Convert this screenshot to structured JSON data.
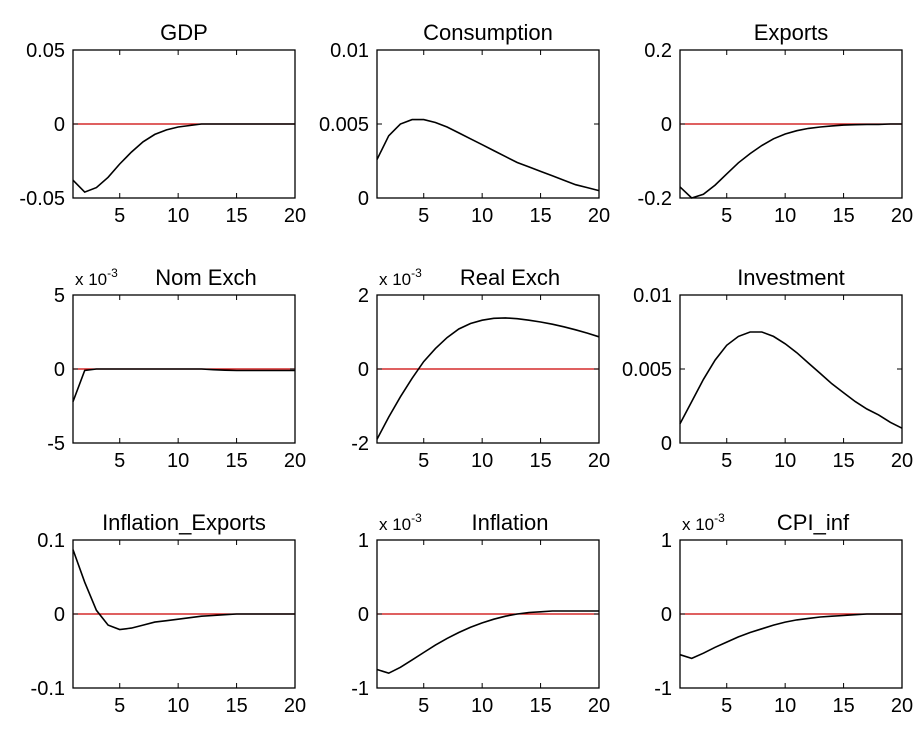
{
  "chart_data": [
    {
      "type": "line",
      "title": "GDP",
      "multiplier": "",
      "xlim": [
        1,
        20
      ],
      "ylim": [
        -0.05,
        0.05
      ],
      "xticks": [
        "5",
        "10",
        "15",
        "20"
      ],
      "yticks": [
        "0.05",
        "0",
        "-0.05"
      ],
      "zero_line_color": "#cc0000",
      "x": [
        1,
        2,
        3,
        4,
        5,
        6,
        7,
        8,
        9,
        10,
        11,
        12,
        13,
        14,
        15,
        16,
        17,
        18,
        19,
        20
      ],
      "y": [
        -0.038,
        -0.046,
        -0.043,
        -0.036,
        -0.027,
        -0.019,
        -0.012,
        -0.007,
        -0.004,
        -0.002,
        -0.001,
        0.0,
        0.0,
        0.0,
        0.0,
        0.0,
        0.0,
        0.0,
        0.0,
        0.0
      ]
    },
    {
      "type": "line",
      "title": "Consumption",
      "multiplier": "",
      "xlim": [
        1,
        20
      ],
      "ylim": [
        0,
        0.01
      ],
      "xticks": [
        "5",
        "10",
        "15",
        "20"
      ],
      "yticks": [
        "0.01",
        "0.005",
        "0"
      ],
      "zero_line_color": "#cc0000",
      "x": [
        1,
        2,
        3,
        4,
        5,
        6,
        7,
        8,
        9,
        10,
        11,
        12,
        13,
        14,
        15,
        16,
        17,
        18,
        19,
        20
      ],
      "y": [
        0.0026,
        0.0042,
        0.005,
        0.0053,
        0.0053,
        0.0051,
        0.0048,
        0.0044,
        0.004,
        0.0036,
        0.0032,
        0.0028,
        0.0024,
        0.0021,
        0.0018,
        0.0015,
        0.0012,
        0.0009,
        0.0007,
        0.0005
      ]
    },
    {
      "type": "line",
      "title": "Exports",
      "multiplier": "",
      "xlim": [
        1,
        20
      ],
      "ylim": [
        -0.2,
        0.2
      ],
      "xticks": [
        "5",
        "10",
        "15",
        "20"
      ],
      "yticks": [
        "0.2",
        "0",
        "-0.2"
      ],
      "zero_line_color": "#cc0000",
      "x": [
        1,
        2,
        3,
        4,
        5,
        6,
        7,
        8,
        9,
        10,
        11,
        12,
        13,
        14,
        15,
        16,
        17,
        18,
        19,
        20
      ],
      "y": [
        -0.17,
        -0.2,
        -0.19,
        -0.165,
        -0.135,
        -0.105,
        -0.08,
        -0.058,
        -0.04,
        -0.027,
        -0.018,
        -0.012,
        -0.008,
        -0.005,
        -0.003,
        -0.002,
        -0.001,
        -0.001,
        0.0,
        0.0
      ]
    },
    {
      "type": "line",
      "title": "Nom Exch",
      "multiplier": "x 10",
      "multiplier_exp": "-3",
      "xlim": [
        1,
        20
      ],
      "ylim": [
        -5,
        5
      ],
      "xticks": [
        "5",
        "10",
        "15",
        "20"
      ],
      "yticks": [
        "5",
        "0",
        "-5"
      ],
      "zero_line_color": "#cc0000",
      "x": [
        1,
        2,
        3,
        4,
        5,
        6,
        7,
        8,
        9,
        10,
        11,
        12,
        13,
        14,
        15,
        16,
        17,
        18,
        19,
        20
      ],
      "y": [
        -2.2,
        -0.1,
        0.0,
        0.0,
        0.0,
        0.0,
        0.0,
        0.0,
        0.0,
        0.0,
        0.0,
        0.0,
        -0.05,
        -0.08,
        -0.1,
        -0.1,
        -0.1,
        -0.1,
        -0.1,
        -0.1
      ]
    },
    {
      "type": "line",
      "title": "Real Exch",
      "multiplier": "x 10",
      "multiplier_exp": "-3",
      "xlim": [
        1,
        20
      ],
      "ylim": [
        -2,
        2
      ],
      "xticks": [
        "5",
        "10",
        "15",
        "20"
      ],
      "yticks": [
        "2",
        "0",
        "-2"
      ],
      "zero_line_color": "#cc0000",
      "x": [
        1,
        2,
        3,
        4,
        5,
        6,
        7,
        8,
        9,
        10,
        11,
        12,
        13,
        14,
        15,
        16,
        17,
        18,
        19,
        20
      ],
      "y": [
        -1.9,
        -1.3,
        -0.75,
        -0.25,
        0.2,
        0.55,
        0.85,
        1.08,
        1.23,
        1.32,
        1.37,
        1.38,
        1.36,
        1.32,
        1.27,
        1.21,
        1.14,
        1.06,
        0.97,
        0.87
      ]
    },
    {
      "type": "line",
      "title": "Investment",
      "multiplier": "",
      "xlim": [
        1,
        20
      ],
      "ylim": [
        0,
        0.01
      ],
      "xticks": [
        "5",
        "10",
        "15",
        "20"
      ],
      "yticks": [
        "0.01",
        "0.005",
        "0"
      ],
      "zero_line_color": "#cc0000",
      "x": [
        1,
        2,
        3,
        4,
        5,
        6,
        7,
        8,
        9,
        10,
        11,
        12,
        13,
        14,
        15,
        16,
        17,
        18,
        19,
        20
      ],
      "y": [
        0.0013,
        0.0028,
        0.0043,
        0.0056,
        0.0066,
        0.0072,
        0.0075,
        0.0075,
        0.0072,
        0.0067,
        0.0061,
        0.0054,
        0.0047,
        0.004,
        0.0034,
        0.0028,
        0.0023,
        0.0019,
        0.0014,
        0.001
      ]
    },
    {
      "type": "line",
      "title": "Inflation_Exports",
      "multiplier": "",
      "xlim": [
        1,
        20
      ],
      "ylim": [
        -0.1,
        0.1
      ],
      "xticks": [
        "5",
        "10",
        "15",
        "20"
      ],
      "yticks": [
        "0.1",
        "0",
        "-0.1"
      ],
      "zero_line_color": "#cc0000",
      "x": [
        1,
        2,
        3,
        4,
        5,
        6,
        7,
        8,
        9,
        10,
        11,
        12,
        13,
        14,
        15,
        16,
        17,
        18,
        19,
        20
      ],
      "y": [
        0.087,
        0.043,
        0.005,
        -0.015,
        -0.021,
        -0.019,
        -0.015,
        -0.011,
        -0.009,
        -0.007,
        -0.005,
        -0.003,
        -0.002,
        -0.001,
        0.0,
        0.0,
        0.0,
        0.0,
        0.0,
        0.0
      ]
    },
    {
      "type": "line",
      "title": "Inflation",
      "multiplier": "x 10",
      "multiplier_exp": "-3",
      "xlim": [
        1,
        20
      ],
      "ylim": [
        -1,
        1
      ],
      "xticks": [
        "5",
        "10",
        "15",
        "20"
      ],
      "yticks": [
        "1",
        "0",
        "-1"
      ],
      "zero_line_color": "#cc0000",
      "x": [
        1,
        2,
        3,
        4,
        5,
        6,
        7,
        8,
        9,
        10,
        11,
        12,
        13,
        14,
        15,
        16,
        17,
        18,
        19,
        20
      ],
      "y": [
        -0.75,
        -0.8,
        -0.72,
        -0.62,
        -0.52,
        -0.42,
        -0.33,
        -0.25,
        -0.18,
        -0.12,
        -0.07,
        -0.03,
        0.0,
        0.02,
        0.03,
        0.04,
        0.04,
        0.04,
        0.04,
        0.04
      ]
    },
    {
      "type": "line",
      "title": "CPI_inf",
      "multiplier": "x 10",
      "multiplier_exp": "-3",
      "xlim": [
        1,
        20
      ],
      "ylim": [
        -1,
        1
      ],
      "xticks": [
        "5",
        "10",
        "15",
        "20"
      ],
      "yticks": [
        "1",
        "0",
        "-1"
      ],
      "zero_line_color": "#cc0000",
      "x": [
        1,
        2,
        3,
        4,
        5,
        6,
        7,
        8,
        9,
        10,
        11,
        12,
        13,
        14,
        15,
        16,
        17,
        18,
        19,
        20
      ],
      "y": [
        -0.55,
        -0.6,
        -0.53,
        -0.45,
        -0.38,
        -0.31,
        -0.25,
        -0.2,
        -0.15,
        -0.11,
        -0.08,
        -0.06,
        -0.04,
        -0.03,
        -0.02,
        -0.01,
        0.0,
        0.0,
        0.0,
        0.0
      ]
    }
  ]
}
